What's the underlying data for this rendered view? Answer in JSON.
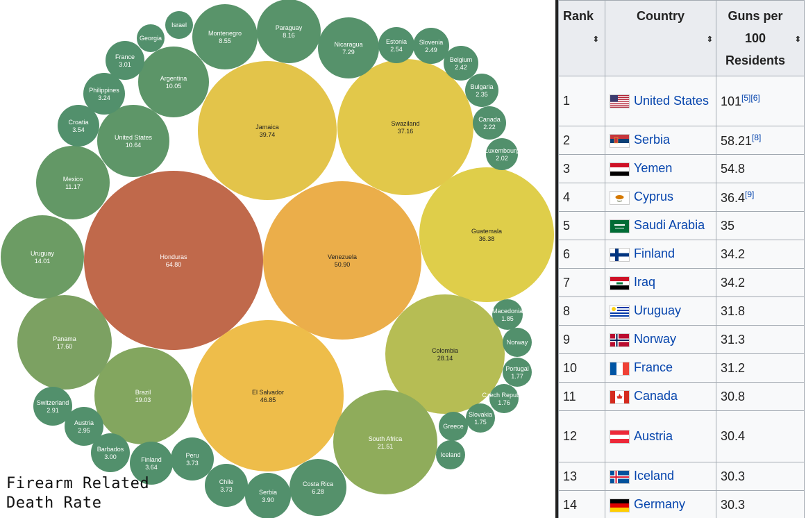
{
  "chart_data": {
    "type": "bubble",
    "title": "Firearm Related Death Rate",
    "title_lines": [
      "Firearm Related",
      "Death Rate"
    ],
    "bubbles": [
      {
        "label": "Honduras",
        "value": "64.80",
        "color": "#c0694b"
      },
      {
        "label": "Venezuela",
        "value": "50.90",
        "color": "#ebae4a"
      },
      {
        "label": "El Salvador",
        "value": "46.85",
        "color": "#eebd4a"
      },
      {
        "label": "Jamaica",
        "value": "39.74",
        "color": "#e3c44a"
      },
      {
        "label": "Swaziland",
        "value": "37.16",
        "color": "#e2c84a"
      },
      {
        "label": "Guatemala",
        "value": "36.38",
        "color": "#dfce4a"
      },
      {
        "label": "Colombia",
        "value": "28.14",
        "color": "#b6bd54"
      },
      {
        "label": "South Africa",
        "value": "21.51",
        "color": "#8fac5b"
      },
      {
        "label": "Brazil",
        "value": "19.03",
        "color": "#83a65f"
      },
      {
        "label": "Panama",
        "value": "17.60",
        "color": "#7ca162"
      },
      {
        "label": "Uruguay",
        "value": "14.01",
        "color": "#6c9c64"
      },
      {
        "label": "Mexico",
        "value": "11.17",
        "color": "#639866"
      },
      {
        "label": "United States",
        "value": "10.64",
        "color": "#5e9668"
      },
      {
        "label": "Argentina",
        "value": "10.05",
        "color": "#5c9568"
      },
      {
        "label": "Montenegro",
        "value": "8.55",
        "color": "#59946a"
      },
      {
        "label": "Paraguay",
        "value": "8.16",
        "color": "#58936a"
      },
      {
        "label": "Nicaragua",
        "value": "7.29",
        "color": "#56926b"
      },
      {
        "label": "Costa Rica",
        "value": "6.28",
        "color": "#55916b"
      },
      {
        "label": "Serbia",
        "value": "3.90",
        "color": "#52906c"
      },
      {
        "label": "Peru",
        "value": "3.73",
        "color": "#52906c"
      },
      {
        "label": "Chile",
        "value": "3.73",
        "color": "#52906c"
      },
      {
        "label": "Finland",
        "value": "3.64",
        "color": "#52906c"
      },
      {
        "label": "Croatia",
        "value": "3.54",
        "color": "#52906c"
      },
      {
        "label": "Philippines",
        "value": "3.24",
        "color": "#52906c"
      },
      {
        "label": "France",
        "value": "3.01",
        "color": "#52906c"
      },
      {
        "label": "Barbados",
        "value": "3.00",
        "color": "#52906c"
      },
      {
        "label": "Austria",
        "value": "2.95",
        "color": "#52906c"
      },
      {
        "label": "Switzerland",
        "value": "2.91",
        "color": "#52906c"
      },
      {
        "label": "Estonia",
        "value": "2.54",
        "color": "#52906c"
      },
      {
        "label": "Slovenia",
        "value": "2.49",
        "color": "#52906c"
      },
      {
        "label": "Belgium",
        "value": "2.42",
        "color": "#52906c"
      },
      {
        "label": "Bulgaria",
        "value": "2.35",
        "color": "#52906c"
      },
      {
        "label": "Canada",
        "value": "2.22",
        "color": "#52906c"
      },
      {
        "label": "Luxembourg",
        "value": "2.02",
        "color": "#52906c"
      },
      {
        "label": "Macedonia",
        "value": "1.85",
        "color": "#52906c"
      },
      {
        "label": "Portugal",
        "value": "1.77",
        "color": "#52906c"
      },
      {
        "label": "Czech Republic",
        "value": "1.76",
        "color": "#52906c"
      },
      {
        "label": "Slovakia",
        "value": "1.75",
        "color": "#52906c"
      },
      {
        "label": "Georgia",
        "value": "",
        "color": "#52906c"
      },
      {
        "label": "Israel",
        "value": "",
        "color": "#52906c"
      },
      {
        "label": "Norway",
        "value": "",
        "color": "#52906c"
      },
      {
        "label": "Greece",
        "value": "",
        "color": "#52906c"
      },
      {
        "label": "Iceland",
        "value": "",
        "color": "#52906c"
      }
    ]
  },
  "table": {
    "headers": {
      "rank": "Rank",
      "country": "Country",
      "guns_line1": "Guns per",
      "guns_line2": "100",
      "guns_line3": "Residents",
      "sort_icon": "⇕"
    },
    "rows": [
      {
        "rank": "1",
        "country": "United States",
        "flag": "us",
        "value": "101",
        "refs": "[5][6]"
      },
      {
        "rank": "2",
        "country": "Serbia",
        "flag": "rs",
        "value": "58.21",
        "refs": "[8]"
      },
      {
        "rank": "3",
        "country": "Yemen",
        "flag": "ye",
        "value": "54.8",
        "refs": ""
      },
      {
        "rank": "4",
        "country": "Cyprus",
        "flag": "cy",
        "value": "36.4",
        "refs": "[9]"
      },
      {
        "rank": "5",
        "country": "Saudi Arabia",
        "flag": "sa",
        "value": "35",
        "refs": ""
      },
      {
        "rank": "6",
        "country": "Finland",
        "flag": "fi",
        "value": "34.2",
        "refs": ""
      },
      {
        "rank": "7",
        "country": "Iraq",
        "flag": "iq",
        "value": "34.2",
        "refs": ""
      },
      {
        "rank": "8",
        "country": "Uruguay",
        "flag": "uy",
        "value": "31.8",
        "refs": ""
      },
      {
        "rank": "9",
        "country": "Norway",
        "flag": "no",
        "value": "31.3",
        "refs": ""
      },
      {
        "rank": "10",
        "country": "France",
        "flag": "fr",
        "value": "31.2",
        "refs": ""
      },
      {
        "rank": "11",
        "country": "Canada",
        "flag": "ca",
        "value": "30.8",
        "refs": ""
      },
      {
        "rank": "12",
        "country": "Austria",
        "flag": "at",
        "value": "30.4",
        "refs": ""
      },
      {
        "rank": "13",
        "country": "Iceland",
        "flag": "is",
        "value": "30.3",
        "refs": ""
      },
      {
        "rank": "14",
        "country": "Germany",
        "flag": "de",
        "value": "30.3",
        "refs": ""
      }
    ]
  }
}
